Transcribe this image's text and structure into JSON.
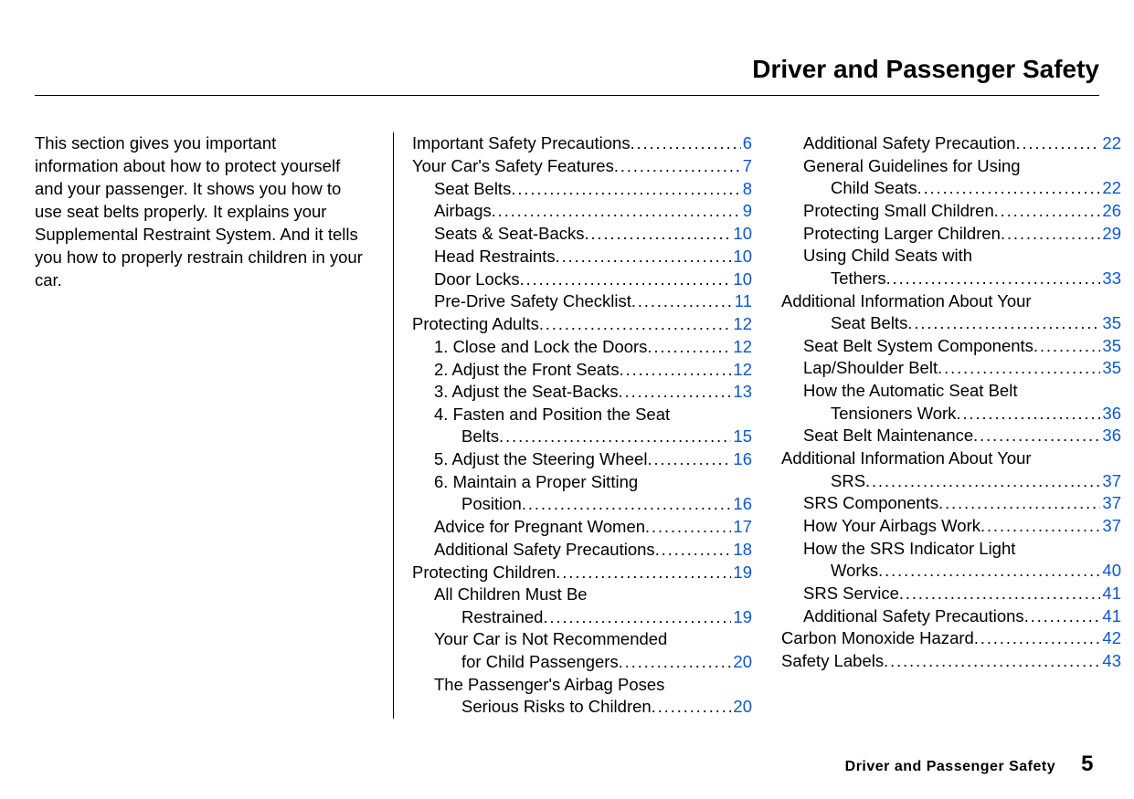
{
  "header": {
    "title": "Driver and Passenger Safety"
  },
  "intro": {
    "text": "This section gives you important information about how to protect yourself and your passenger. It shows you how to use seat belts properly. It explains your Supple­mental Restraint System. And it tells you how to properly restrain children in your car."
  },
  "toc": {
    "link_color": "#0b57d0",
    "text_color": "#000000",
    "col1": [
      {
        "label": "Important Safety Precautions ",
        "page": "6",
        "indent": 0
      },
      {
        "label": "Your Car's Safety Features ",
        "page": "7",
        "indent": 0
      },
      {
        "label": "Seat Belts",
        "page": "8",
        "indent": 1
      },
      {
        "label": "Airbags",
        "page": "9",
        "indent": 1
      },
      {
        "label": "Seats & Seat-Backs",
        "page": "10",
        "indent": 1
      },
      {
        "label": "Head Restraints",
        "page": "10",
        "indent": 1
      },
      {
        "label": "Door Locks",
        "page": "10",
        "indent": 1
      },
      {
        "label": "Pre-Drive Safety Checklist",
        "page": "11",
        "indent": 1
      },
      {
        "label": "Protecting Adults",
        "page": "12",
        "indent": 0
      },
      {
        "label": "1. Close and Lock the Doors",
        "page": "12",
        "indent": 1
      },
      {
        "label": "2. Adjust the Front Seats",
        "page": "12",
        "indent": 1
      },
      {
        "label": "3. Adjust the Seat-Backs",
        "page": "13",
        "indent": 1
      },
      {
        "label": "4. Fasten and Position the Seat",
        "page": "",
        "indent": 1,
        "nowrap_page": true
      },
      {
        "label": "Belts",
        "page": "15",
        "indent": 2
      },
      {
        "label": "5. Adjust the Steering Wheel",
        "page": "16",
        "indent": 1
      },
      {
        "label": "6. Maintain a Proper Sitting",
        "page": "",
        "indent": 1,
        "nowrap_page": true
      },
      {
        "label": "Position",
        "page": "16",
        "indent": 2
      },
      {
        "label": "Advice for Pregnant Women",
        "page": "17",
        "indent": 1
      },
      {
        "label": "Additional Safety Precautions",
        "page": "18",
        "indent": 1
      },
      {
        "label": "Protecting Children",
        "page": "19",
        "indent": 0
      },
      {
        "label": "All Children Must Be",
        "page": "",
        "indent": 1,
        "nowrap_page": true
      },
      {
        "label": "Restrained",
        "page": "19",
        "indent": 2
      },
      {
        "label": "Your Car is Not Recommended",
        "page": "",
        "indent": 1,
        "nowrap_page": true
      },
      {
        "label": "for Child Passengers",
        "page": "20",
        "indent": 2
      },
      {
        "label": "The Passenger's Airbag Poses",
        "page": "",
        "indent": 1,
        "nowrap_page": true
      },
      {
        "label": "Serious Risks to Children",
        "page": "20",
        "indent": 2
      }
    ],
    "col2": [
      {
        "label": "Additional Safety Precaution",
        "page": "22",
        "indent": 1
      },
      {
        "label": "General Guidelines for Using",
        "page": "",
        "indent": 1,
        "nowrap_page": true
      },
      {
        "label": "Child Seats",
        "page": "22",
        "indent": 2
      },
      {
        "label": "Protecting Small Children",
        "page": "26",
        "indent": 1
      },
      {
        "label": "Protecting Larger Children",
        "page": "29",
        "indent": 1
      },
      {
        "label": "Using Child Seats with",
        "page": "",
        "indent": 1,
        "nowrap_page": true
      },
      {
        "label": "Tethers",
        "page": "33",
        "indent": 2
      },
      {
        "label": "Additional Information About Your",
        "page": "",
        "indent": 0,
        "nowrap_page": true
      },
      {
        "label": "Seat Belts",
        "page": "35",
        "indent": 2
      },
      {
        "label": "Seat Belt System Components",
        "page": "35",
        "indent": 1
      },
      {
        "label": "Lap/Shoulder Belt",
        "page": "35",
        "indent": 1
      },
      {
        "label": "How the Automatic Seat Belt",
        "page": "",
        "indent": 1,
        "nowrap_page": true
      },
      {
        "label": "Tensioners Work",
        "page": "36",
        "indent": 2
      },
      {
        "label": "Seat Belt Maintenance",
        "page": "36",
        "indent": 1
      },
      {
        "label": "Additional Information About Your",
        "page": "",
        "indent": 0,
        "nowrap_page": true
      },
      {
        "label": "SRS",
        "page": "37",
        "indent": 2
      },
      {
        "label": "SRS Components",
        "page": "37",
        "indent": 1
      },
      {
        "label": "How Your Airbags Work",
        "page": "37",
        "indent": 1
      },
      {
        "label": "How the SRS Indicator Light",
        "page": "",
        "indent": 1,
        "nowrap_page": true
      },
      {
        "label": "Works",
        "page": "40",
        "indent": 2
      },
      {
        "label": "SRS Service",
        "page": "41",
        "indent": 1
      },
      {
        "label": "Additional Safety Precautions",
        "page": "41",
        "indent": 1
      },
      {
        "label": "Carbon Monoxide Hazard",
        "page": "42",
        "indent": 0
      },
      {
        "label": "Safety Labels",
        "page": "43",
        "indent": 0
      }
    ]
  },
  "footer": {
    "section": "Driver and Passenger Safety",
    "page": "5"
  }
}
